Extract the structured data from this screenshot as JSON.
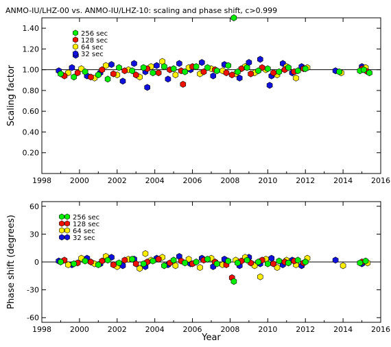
{
  "title": "ANMO-IU/LHZ-00 vs. ANMO-IU/LHZ-10: scaling and phase shift, c>0.999",
  "colors": {
    "p256": "#00ee00",
    "p128": "#ee1100",
    "p64": "#ffee00",
    "p32": "#1111dd",
    "edge": "#000000",
    "axis": "#000000"
  },
  "chart_data": [
    {
      "type": "scatter",
      "ylabel": "Scaling factor",
      "xlabel": "",
      "xlim": [
        1998,
        2016
      ],
      "ylim": [
        0.0,
        1.5
      ],
      "x_ticks": [
        "1998",
        "2000",
        "2002",
        "2004",
        "2006",
        "2008",
        "2010",
        "2012",
        "2014",
        "2016"
      ],
      "y_ticks": [
        "0.20",
        "0.40",
        "0.60",
        "0.80",
        "1.00",
        "1.20",
        "1.40"
      ],
      "reference_line": 1.0,
      "legend_position": "top-left",
      "legend": [
        "256 sec",
        "128 sec",
        " 64 sec",
        " 32 sec"
      ],
      "series": [
        {
          "name": "256 sec",
          "color": "#00ee00",
          "x": [
            1999.0,
            1999.7,
            2000.3,
            2001.0,
            2001.5,
            2002.1,
            2002.8,
            2003.4,
            2003.9,
            2004.5,
            2005.0,
            2005.6,
            2006.2,
            2006.8,
            2007.3,
            2007.9,
            2008.4,
            2008.9,
            2009.5,
            2010.0,
            2010.6,
            2011.1,
            2011.6,
            2012.0,
            2013.8,
            2014.9,
            2015.1,
            2015.4,
            2008.2
          ],
          "y": [
            0.96,
            0.93,
            0.98,
            0.95,
            0.91,
            1.02,
            0.99,
            1.02,
            0.97,
            1.03,
            1.01,
            0.98,
            1.03,
            1.02,
            0.99,
            1.04,
            0.98,
            1.02,
            0.99,
            1.01,
            0.98,
            1.02,
            0.99,
            1.01,
            0.98,
            0.99,
            1.0,
            0.97,
            1.5
          ]
        },
        {
          "name": "128 sec",
          "color": "#ee1100",
          "x": [
            1999.2,
            1999.9,
            2000.6,
            2001.2,
            2001.8,
            2002.4,
            2003.0,
            2003.6,
            2004.2,
            2004.8,
            2005.4,
            2006.0,
            2006.6,
            2007.2,
            2007.8,
            2008.1,
            2008.6,
            2009.1,
            2009.7,
            2010.3,
            2010.9,
            2011.4,
            2011.9,
            2005.5,
            2015.0,
            2015.3
          ],
          "y": [
            0.94,
            0.97,
            0.93,
            1.0,
            0.96,
            0.99,
            0.95,
            1.01,
            0.97,
            1.0,
            0.99,
            1.03,
            0.98,
            1.0,
            0.97,
            0.95,
            1.01,
            0.96,
            1.02,
            0.97,
            1.0,
            0.98,
            1.01,
            0.86,
            1.01,
            0.98
          ]
        },
        {
          "name": " 64 sec",
          "color": "#ffee00",
          "x": [
            1999.4,
            2000.1,
            2000.8,
            2001.4,
            2002.0,
            2002.6,
            2003.2,
            2003.8,
            2004.4,
            2005.1,
            2005.8,
            2006.4,
            2007.0,
            2007.6,
            2008.3,
            2008.8,
            2009.3,
            2009.9,
            2010.5,
            2011.0,
            2011.5,
            2012.1,
            2013.9,
            2015.2
          ],
          "y": [
            0.97,
            1.01,
            0.92,
            1.04,
            0.95,
            1.0,
            0.93,
            1.03,
            1.08,
            0.95,
            1.02,
            0.96,
            1.01,
            0.99,
            0.96,
            1.03,
            0.97,
            1.0,
            0.95,
            1.03,
            0.92,
            1.02,
            0.97,
            1.02
          ]
        },
        {
          "name": " 32 sec",
          "color": "#1111dd",
          "x": [
            1998.9,
            1999.6,
            2000.4,
            2001.1,
            2001.7,
            2002.3,
            2002.9,
            2003.5,
            2004.1,
            2004.7,
            2005.3,
            2005.9,
            2006.5,
            2007.1,
            2007.7,
            2008.5,
            2009.0,
            2009.6,
            2010.2,
            2010.8,
            2011.3,
            2011.8,
            2003.6,
            2010.1,
            2013.6,
            2015.0,
            1999.8
          ],
          "y": [
            0.99,
            1.02,
            0.94,
            0.97,
            1.05,
            0.89,
            1.06,
            0.98,
            1.04,
            0.91,
            1.06,
            1.0,
            1.07,
            0.94,
            1.05,
            0.92,
            1.07,
            1.1,
            0.94,
            1.06,
            0.97,
            1.03,
            0.83,
            0.85,
            0.99,
            1.03,
            1.14
          ]
        }
      ]
    },
    {
      "type": "scatter",
      "ylabel": "Phase shift (degrees)",
      "xlabel": "Year",
      "xlim": [
        1998,
        2016
      ],
      "ylim": [
        -65,
        65
      ],
      "x_ticks": [
        "1998",
        "2000",
        "2002",
        "2004",
        "2006",
        "2008",
        "2010",
        "2012",
        "2014",
        "2016"
      ],
      "y_ticks": [
        "-60",
        "-30",
        "0",
        "30",
        "60"
      ],
      "reference_line": 0,
      "legend_position": "top-left",
      "legend": [
        "256 sec",
        "128 sec",
        " 64 sec",
        " 32 sec"
      ],
      "series": [
        {
          "name": "256 sec",
          "color": "#00ee00",
          "x": [
            1999.0,
            1999.7,
            2000.3,
            2001.0,
            2001.5,
            2002.1,
            2002.8,
            2003.4,
            2003.9,
            2004.5,
            2005.0,
            2005.6,
            2006.2,
            2006.8,
            2007.3,
            2007.9,
            2008.4,
            2008.9,
            2009.5,
            2010.0,
            2010.6,
            2011.1,
            2011.6,
            2012.0,
            2014.9,
            2015.2,
            2008.2
          ],
          "y": [
            0,
            -2,
            1,
            -3,
            2,
            -1,
            3,
            -2,
            1,
            -4,
            2,
            -1,
            0,
            3,
            -2,
            1,
            -1,
            2,
            0,
            -2,
            1,
            -1,
            2,
            0,
            -1,
            1,
            -21
          ]
        },
        {
          "name": "128 sec",
          "color": "#ee1100",
          "x": [
            1999.2,
            1999.9,
            2000.6,
            2001.2,
            2001.8,
            2002.4,
            2003.0,
            2003.6,
            2004.2,
            2004.8,
            2005.4,
            2006.0,
            2006.6,
            2007.2,
            2007.8,
            2008.1,
            2008.6,
            2009.1,
            2009.7,
            2010.3,
            2010.9,
            2011.4,
            2011.9,
            2015.0
          ],
          "y": [
            2,
            -1,
            0,
            1,
            -3,
            2,
            -2,
            0,
            3,
            -1,
            1,
            -2,
            2,
            0,
            -3,
            -17,
            1,
            -1,
            2,
            -2,
            0,
            1,
            -1,
            0
          ]
        },
        {
          "name": " 64 sec",
          "color": "#ffee00",
          "x": [
            1999.4,
            2000.1,
            2000.8,
            2001.4,
            2002.0,
            2002.6,
            2003.2,
            2003.8,
            2004.4,
            2005.1,
            2005.8,
            2006.4,
            2007.0,
            2007.6,
            2008.3,
            2008.8,
            2009.3,
            2009.9,
            2010.5,
            2011.0,
            2011.5,
            2012.1,
            2014.0,
            2015.3,
            2009.6,
            2003.5
          ],
          "y": [
            -3,
            4,
            -2,
            6,
            -5,
            3,
            -7,
            2,
            5,
            -4,
            3,
            -6,
            4,
            -3,
            2,
            5,
            -4,
            3,
            -6,
            2,
            -3,
            4,
            -4,
            -1,
            -16,
            9
          ]
        },
        {
          "name": " 32 sec",
          "color": "#1111dd",
          "x": [
            1998.9,
            1999.6,
            2000.4,
            2001.1,
            2001.7,
            2002.3,
            2002.9,
            2003.5,
            2004.1,
            2004.7,
            2005.3,
            2005.9,
            2006.5,
            2007.1,
            2007.7,
            2008.5,
            2009.0,
            2009.6,
            2010.2,
            2010.8,
            2011.3,
            2011.8,
            2013.6,
            2015.0
          ],
          "y": [
            1,
            -3,
            4,
            -2,
            5,
            -4,
            3,
            -5,
            4,
            -3,
            6,
            -2,
            4,
            -5,
            3,
            -4,
            5,
            -2,
            4,
            -3,
            2,
            -4,
            2,
            -2
          ]
        }
      ]
    }
  ]
}
